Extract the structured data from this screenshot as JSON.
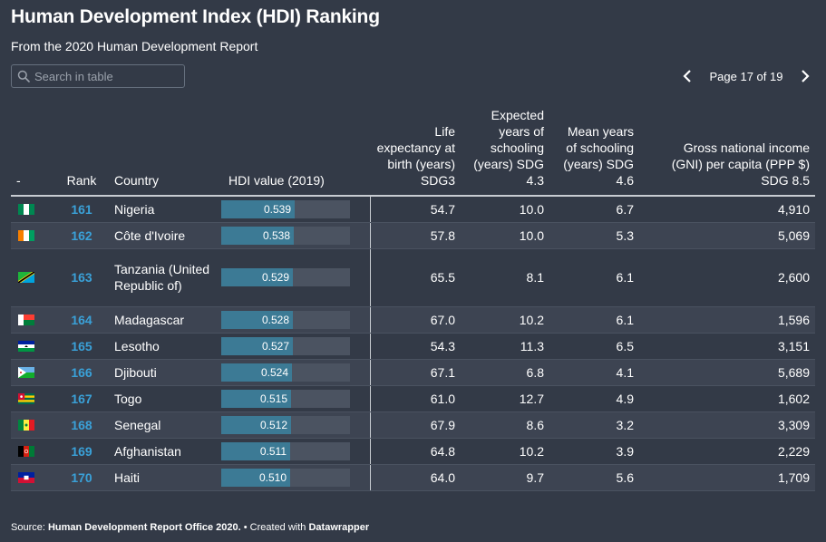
{
  "header": {
    "title": "Human Development Index (HDI) Ranking",
    "subtitle": "From the 2020 Human Development Report"
  },
  "search": {
    "placeholder": "Search in table",
    "icon": "search-icon"
  },
  "pager": {
    "text": "Page 17 of 19",
    "prev_icon": "chevron-left-icon",
    "next_icon": "chevron-right-icon"
  },
  "footer": {
    "source_prefix": "Source: ",
    "source": "Human Development Report Office 2020.",
    "separator": " • Created with ",
    "tool": "Datawrapper"
  },
  "colors": {
    "background": "#333a47",
    "rank": "#3aa1d8",
    "bar_fill": "#3c7a95",
    "bar_track": "#4b5361"
  },
  "chart_data": {
    "type": "table",
    "columns": [
      "-",
      "Rank",
      "Country",
      "HDI value (2019)",
      "Life expectancy at birth (years) SDG3",
      "Expected years of schooling (years) SDG 4.3",
      "Mean years of schooling (years) SDG 4.6",
      "Gross national income (GNI) per capita (PPP $) SDG 8.5"
    ],
    "hdi_bar_range": [
      0,
      0.95
    ],
    "rows": [
      {
        "flag": "nigeria-flag-icon",
        "rank": "161",
        "country": "Nigeria",
        "hdi": 0.539,
        "hdi_label": "0.539",
        "life": "54.7",
        "expected": "10.0",
        "mean": "6.7",
        "gni": "4,910"
      },
      {
        "flag": "cote-divoire-flag-icon",
        "rank": "162",
        "country": "Côte d'Ivoire",
        "hdi": 0.538,
        "hdi_label": "0.538",
        "life": "57.8",
        "expected": "10.0",
        "mean": "5.3",
        "gni": "5,069"
      },
      {
        "flag": "tanzania-flag-icon",
        "rank": "163",
        "country": "Tanzania (United Republic of)",
        "hdi": 0.529,
        "hdi_label": "0.529",
        "life": "65.5",
        "expected": "8.1",
        "mean": "6.1",
        "gni": "2,600"
      },
      {
        "flag": "madagascar-flag-icon",
        "rank": "164",
        "country": "Madagascar",
        "hdi": 0.528,
        "hdi_label": "0.528",
        "life": "67.0",
        "expected": "10.2",
        "mean": "6.1",
        "gni": "1,596"
      },
      {
        "flag": "lesotho-flag-icon",
        "rank": "165",
        "country": "Lesotho",
        "hdi": 0.527,
        "hdi_label": "0.527",
        "life": "54.3",
        "expected": "11.3",
        "mean": "6.5",
        "gni": "3,151"
      },
      {
        "flag": "djibouti-flag-icon",
        "rank": "166",
        "country": "Djibouti",
        "hdi": 0.524,
        "hdi_label": "0.524",
        "life": "67.1",
        "expected": "6.8",
        "mean": "4.1",
        "gni": "5,689"
      },
      {
        "flag": "togo-flag-icon",
        "rank": "167",
        "country": "Togo",
        "hdi": 0.515,
        "hdi_label": "0.515",
        "life": "61.0",
        "expected": "12.7",
        "mean": "4.9",
        "gni": "1,602"
      },
      {
        "flag": "senegal-flag-icon",
        "rank": "168",
        "country": "Senegal",
        "hdi": 0.512,
        "hdi_label": "0.512",
        "life": "67.9",
        "expected": "8.6",
        "mean": "3.2",
        "gni": "3,309"
      },
      {
        "flag": "afghanistan-flag-icon",
        "rank": "169",
        "country": "Afghanistan",
        "hdi": 0.511,
        "hdi_label": "0.511",
        "life": "64.8",
        "expected": "10.2",
        "mean": "3.9",
        "gni": "2,229"
      },
      {
        "flag": "haiti-flag-icon",
        "rank": "170",
        "country": "Haiti",
        "hdi": 0.51,
        "hdi_label": "0.510",
        "life": "64.0",
        "expected": "9.7",
        "mean": "5.6",
        "gni": "1,709"
      }
    ]
  }
}
